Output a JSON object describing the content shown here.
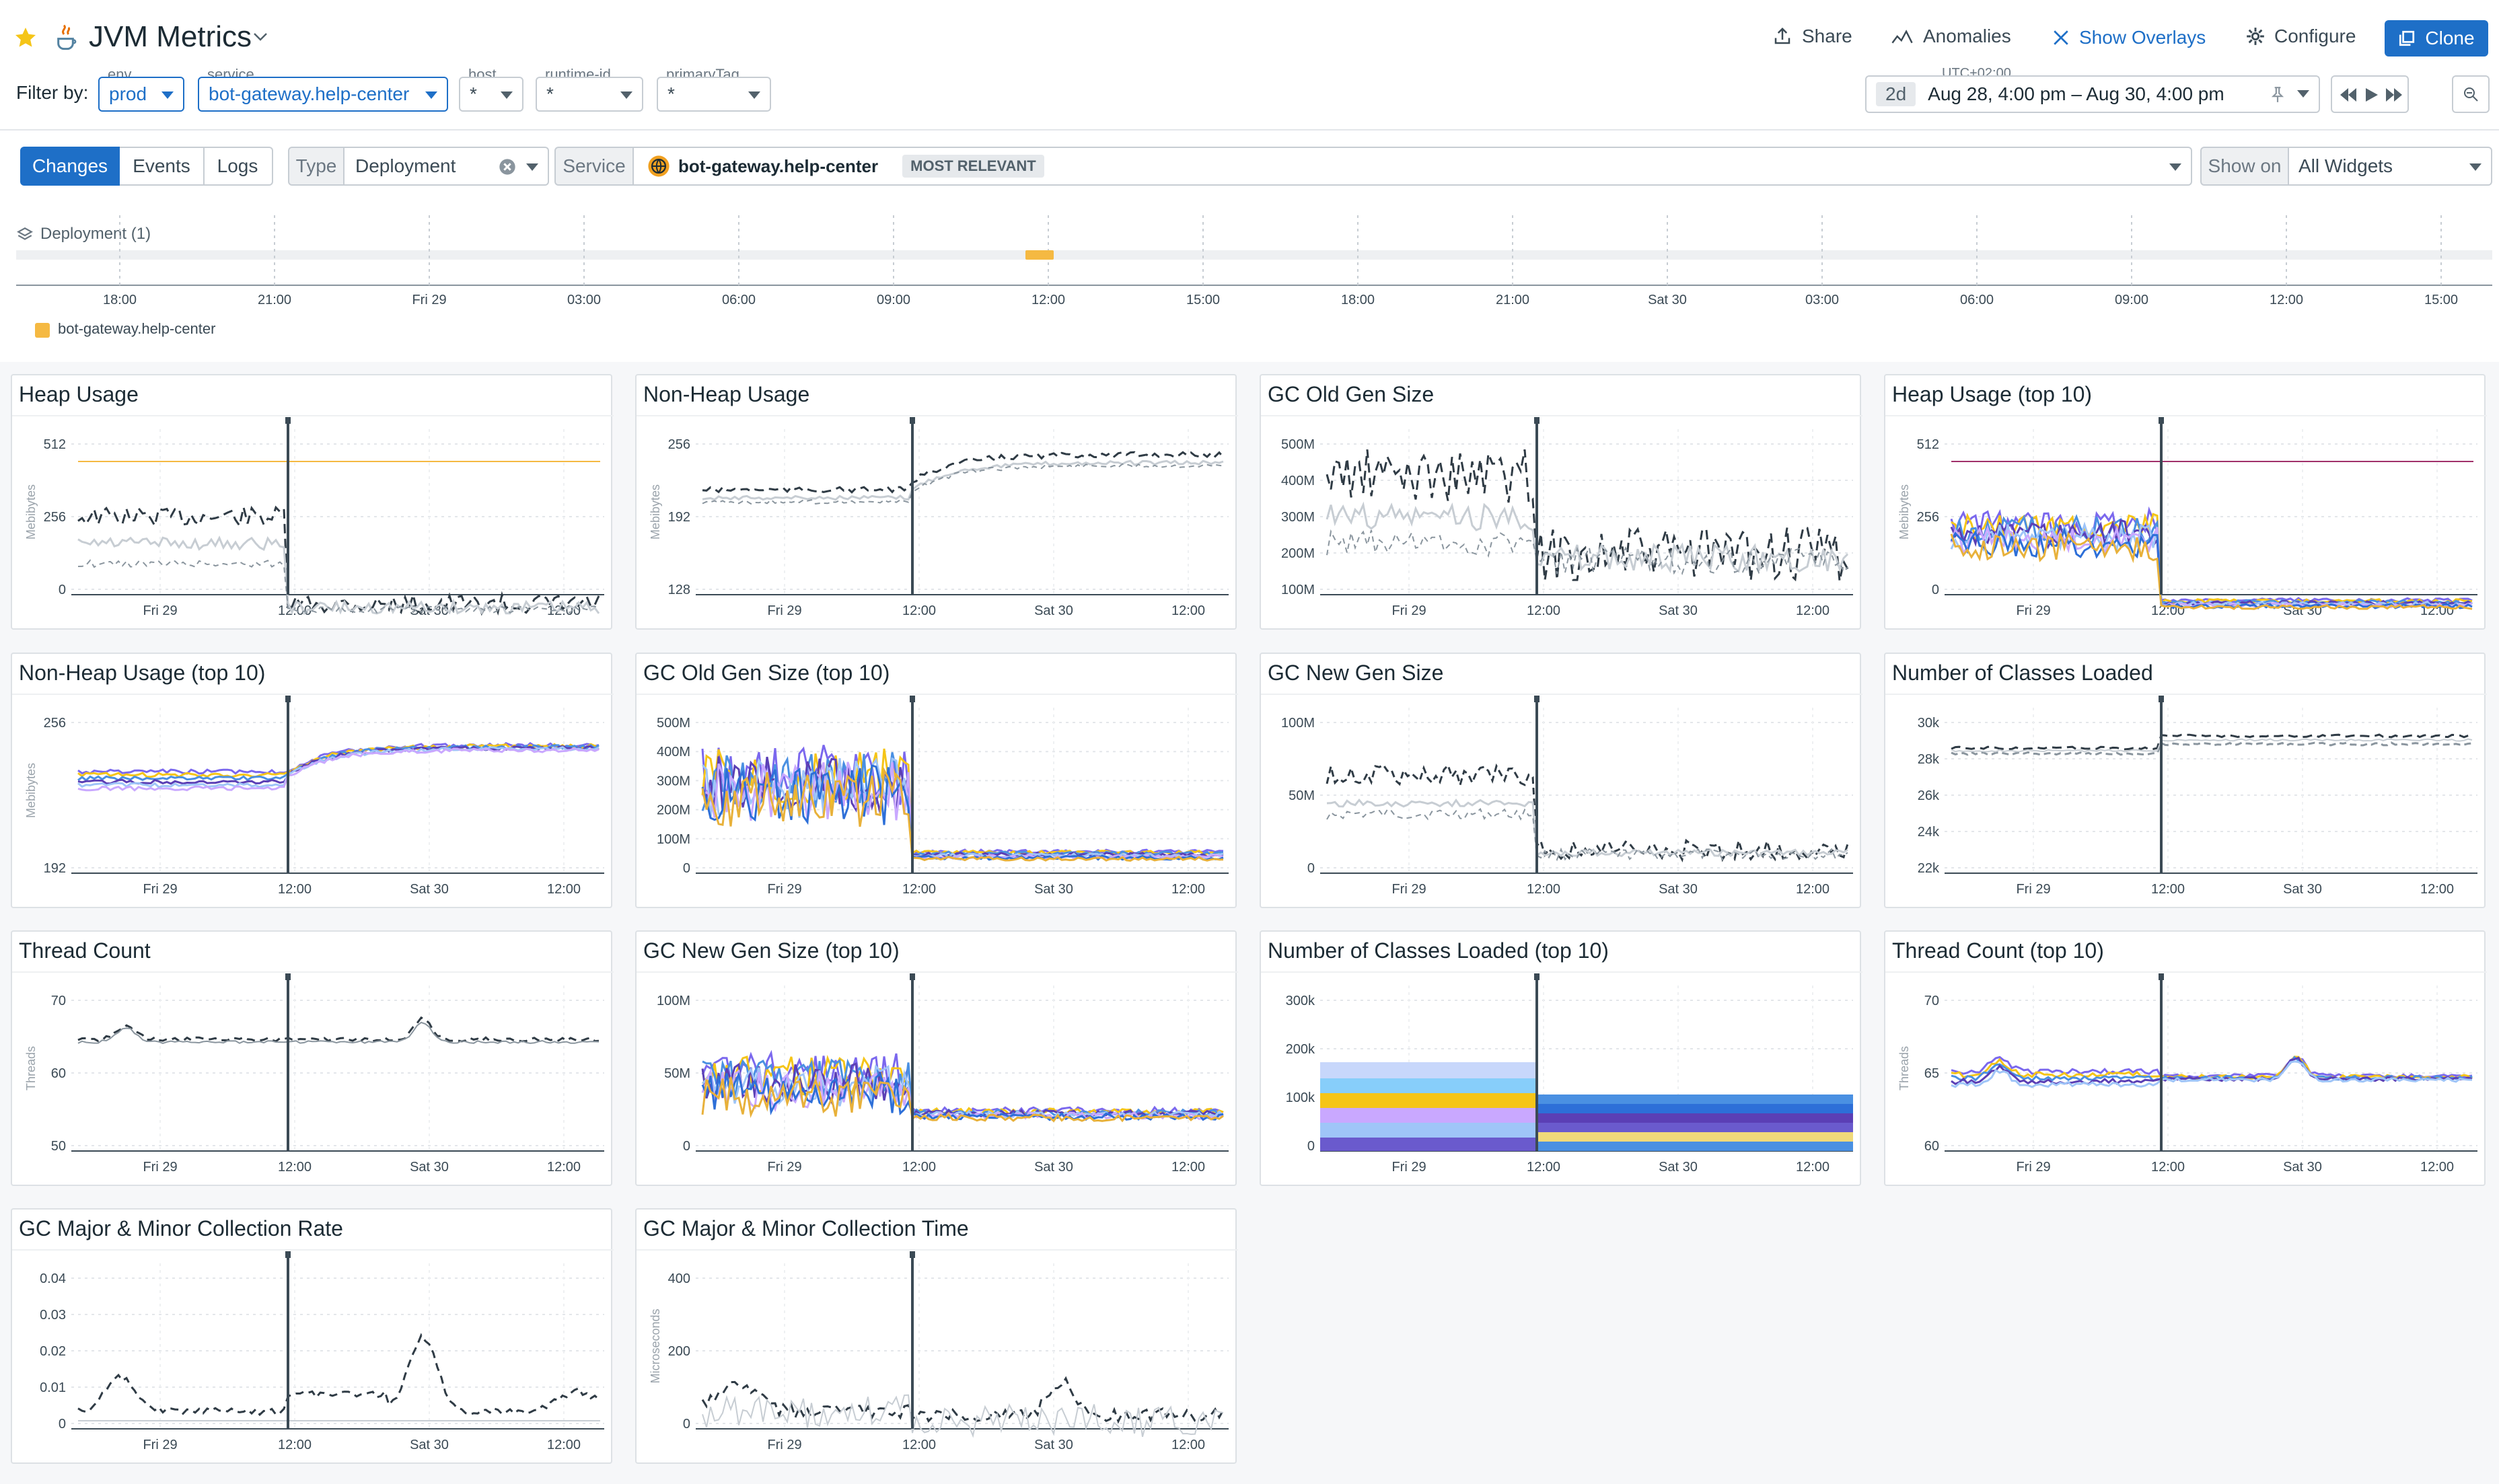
{
  "dashboard": {
    "title": "JVM Metrics"
  },
  "toolbar": {
    "share": "Share",
    "anomalies": "Anomalies",
    "overlays": "Show Overlays",
    "configure": "Configure",
    "clone": "Clone"
  },
  "filters": {
    "label": "Filter by:",
    "items": [
      {
        "name": "env",
        "value": "prod"
      },
      {
        "name": "service",
        "value": "bot-gateway.help-center"
      },
      {
        "name": "host",
        "value": "*"
      },
      {
        "name": "runtime-id",
        "value": "*"
      },
      {
        "name": "primaryTag",
        "value": "*"
      }
    ]
  },
  "timepicker": {
    "tz": "UTC+02:00",
    "span": "2d",
    "range": "Aug 28, 4:00 pm – Aug 30, 4:00 pm"
  },
  "changes": {
    "tabs": [
      "Changes",
      "Events",
      "Logs"
    ],
    "type_label": "Type",
    "type_value": "Deployment",
    "service_label": "Service",
    "service_value": "bot-gateway.help-center",
    "service_badge": "MOST RELEVANT",
    "show_on_label": "Show on",
    "show_on_value": "All Widgets",
    "deployment_label": "Deployment (1)",
    "legend": "bot-gateway.help-center",
    "timeline_ticks": [
      "18:00",
      "21:00",
      "Fri 29",
      "03:00",
      "06:00",
      "09:00",
      "12:00",
      "15:00",
      "18:00",
      "21:00",
      "Sat 30",
      "03:00",
      "06:00",
      "09:00",
      "12:00",
      "15:00"
    ]
  },
  "x_ticks": [
    "Fri 29",
    "12:00",
    "Sat 30",
    "12:00"
  ],
  "colors": {
    "accent": "#1e6fc7",
    "deploy": "#f5b942",
    "star": "#f5c518"
  },
  "panels": [
    {
      "title": "Heap Usage",
      "unit": "Mebibytes",
      "yticks": [
        "0",
        "256",
        "512"
      ]
    },
    {
      "title": "Non-Heap Usage",
      "unit": "Mebibytes",
      "yticks": [
        "128",
        "192",
        "256"
      ]
    },
    {
      "title": "GC Old Gen Size",
      "unit": "",
      "yticks": [
        "100M",
        "200M",
        "300M",
        "400M",
        "500M"
      ]
    },
    {
      "title": "Heap Usage (top 10)",
      "unit": "Mebibytes",
      "yticks": [
        "0",
        "256",
        "512"
      ]
    },
    {
      "title": "Non-Heap Usage (top 10)",
      "unit": "Mebibytes",
      "yticks": [
        "192",
        "256"
      ]
    },
    {
      "title": "GC Old Gen Size (top 10)",
      "unit": "",
      "yticks": [
        "0",
        "100M",
        "200M",
        "300M",
        "400M",
        "500M"
      ]
    },
    {
      "title": "GC New Gen Size",
      "unit": "",
      "yticks": [
        "0",
        "50M",
        "100M"
      ]
    },
    {
      "title": "Number of Classes Loaded",
      "unit": "",
      "yticks": [
        "22k",
        "24k",
        "26k",
        "28k",
        "30k"
      ]
    },
    {
      "title": "Thread Count",
      "unit": "Threads",
      "yticks": [
        "50",
        "60",
        "70"
      ]
    },
    {
      "title": "GC New Gen Size (top 10)",
      "unit": "",
      "yticks": [
        "0",
        "50M",
        "100M"
      ]
    },
    {
      "title": "Number of Classes Loaded (top 10)",
      "unit": "",
      "yticks": [
        "0",
        "100k",
        "200k",
        "300k"
      ]
    },
    {
      "title": "Thread Count (top 10)",
      "unit": "Threads",
      "yticks": [
        "60",
        "65",
        "70"
      ]
    },
    {
      "title": "GC Major & Minor Collection Rate",
      "unit": "",
      "yticks": [
        "0",
        "0.01",
        "0.02",
        "0.03",
        "0.04"
      ]
    },
    {
      "title": "GC Major & Minor Collection Time",
      "unit": "Microseconds",
      "yticks": [
        "0",
        "200",
        "400"
      ]
    }
  ]
}
